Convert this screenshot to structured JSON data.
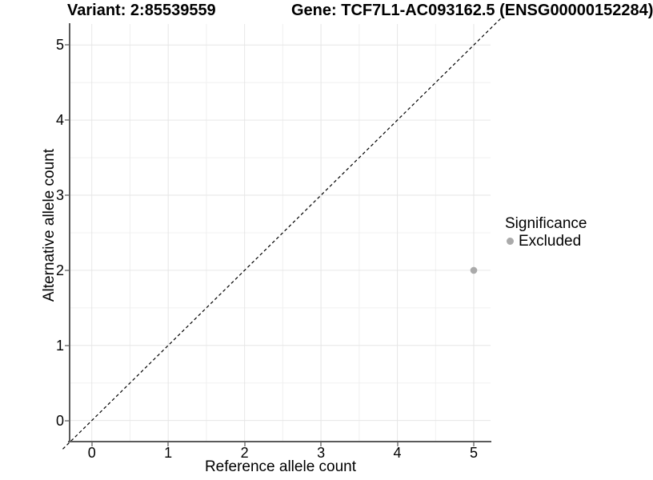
{
  "chart_data": {
    "type": "scatter",
    "title_variant": "Variant: 2:85539559",
    "title_gene": "Gene: TCF7L1-AC093162.5 (ENSG00000152284)",
    "xlabel": "Reference allele count",
    "ylabel": "Alternative allele count",
    "x_ticks": [
      0,
      1,
      2,
      3,
      4,
      5
    ],
    "y_ticks": [
      0,
      1,
      2,
      3,
      4,
      5
    ],
    "xlim": [
      -0.28,
      5.22
    ],
    "ylim": [
      -0.27,
      5.28
    ],
    "minor_grid_step": 0.5,
    "grid": "major+minor",
    "reference_line": {
      "type": "identity y=x",
      "style": "dashed",
      "color": "#000000"
    },
    "series": [
      {
        "name": "Excluded",
        "color": "#aaaaaa",
        "point_radius": 4.3,
        "points": [
          {
            "x": 5,
            "y": 2
          }
        ]
      }
    ],
    "legend": {
      "title": "Significance",
      "position": "right",
      "entries": [
        {
          "label": "Excluded",
          "color": "#aaaaaa",
          "marker": "circle"
        }
      ]
    },
    "colors": {
      "axis_line": "#5a5a5a",
      "tick_mark": "#999999",
      "grid_major": "#e6e6e6",
      "grid_minor": "#f0f0f0",
      "text": "#000000"
    }
  }
}
